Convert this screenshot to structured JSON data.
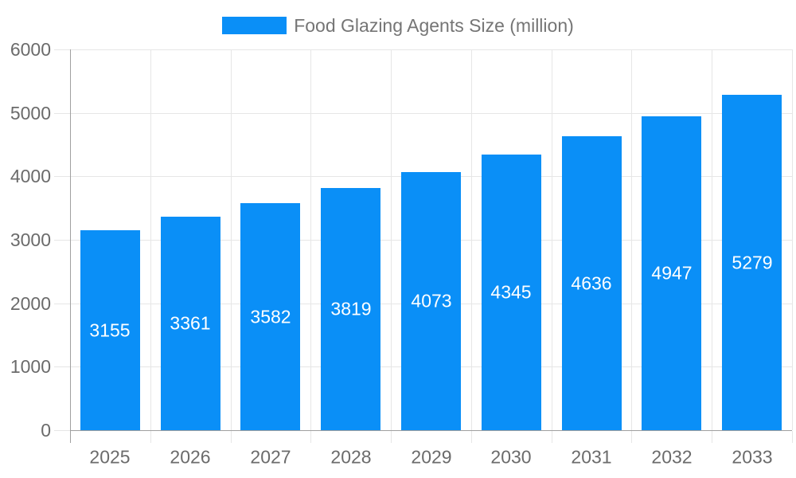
{
  "legend": {
    "label": "Food Glazing Agents Size (million)"
  },
  "colors": {
    "bar": "#0a8ff7",
    "bar_label": "#ffffff",
    "grid": "#e6e6e6",
    "axis": "#a0a0a0",
    "tick_text": "#6b6b6b",
    "legend_text": "#757575",
    "background": "#ffffff"
  },
  "chart_data": {
    "type": "bar",
    "title": "Food Glazing Agents Size (million)",
    "categories": [
      "2025",
      "2026",
      "2027",
      "2028",
      "2029",
      "2030",
      "2031",
      "2032",
      "2033"
    ],
    "series": [
      {
        "name": "Food Glazing Agents Size (million)",
        "values": [
          3155,
          3361,
          3582,
          3819,
          4073,
          4345,
          4636,
          4947,
          5279
        ]
      }
    ],
    "xlabel": "",
    "ylabel": "",
    "ylim": [
      0,
      6000
    ],
    "yticks": [
      0,
      1000,
      2000,
      3000,
      4000,
      5000,
      6000
    ],
    "grid": true,
    "legend_position": "top-center",
    "bar_value_labels": "centered-inside-white"
  }
}
